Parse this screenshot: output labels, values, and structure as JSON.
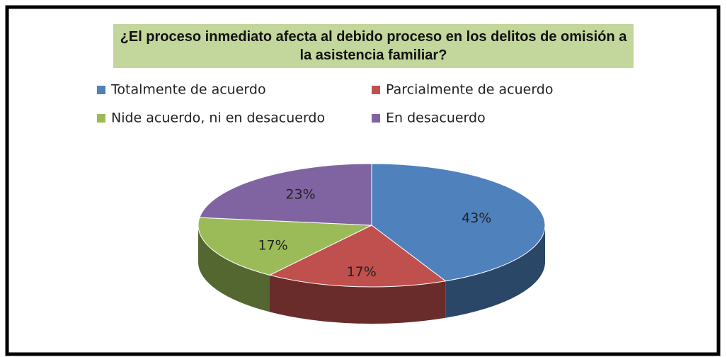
{
  "chart_data": {
    "type": "pie",
    "title": "¿El proceso inmediato afecta al debido proceso en los delitos de omisión a la asistencia familiar?",
    "categories": [
      "Totalmente de acuerdo",
      "Parcialmente de acuerdo",
      "Nide acuerdo, ni en desacuerdo",
      "En desacuerdo"
    ],
    "values": [
      43,
      17,
      17,
      23
    ],
    "value_labels": [
      "43%",
      "17%",
      "17%",
      "23%"
    ],
    "colors": [
      "#4f81bd",
      "#c0504d",
      "#9bbb59",
      "#8064a2"
    ],
    "legend": "top"
  }
}
